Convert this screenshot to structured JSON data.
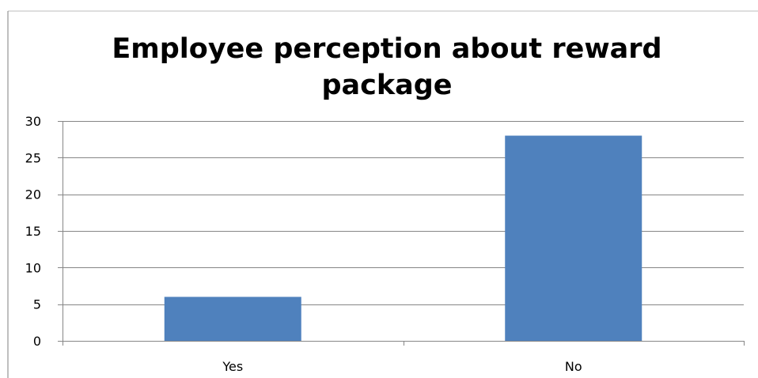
{
  "chart_data": {
    "type": "bar",
    "title_lines": [
      "Employee perception about reward",
      "package"
    ],
    "categories": [
      "Yes",
      "No"
    ],
    "values": [
      6,
      28
    ],
    "ylim": [
      0,
      30
    ],
    "yticks": [
      0,
      5,
      10,
      15,
      20,
      25,
      30
    ],
    "xlabel": "",
    "ylabel": "",
    "grid": true,
    "legend": "none",
    "bar_color": "#4F81BD",
    "grid_color": "#868686",
    "axis_color": "#868686"
  }
}
